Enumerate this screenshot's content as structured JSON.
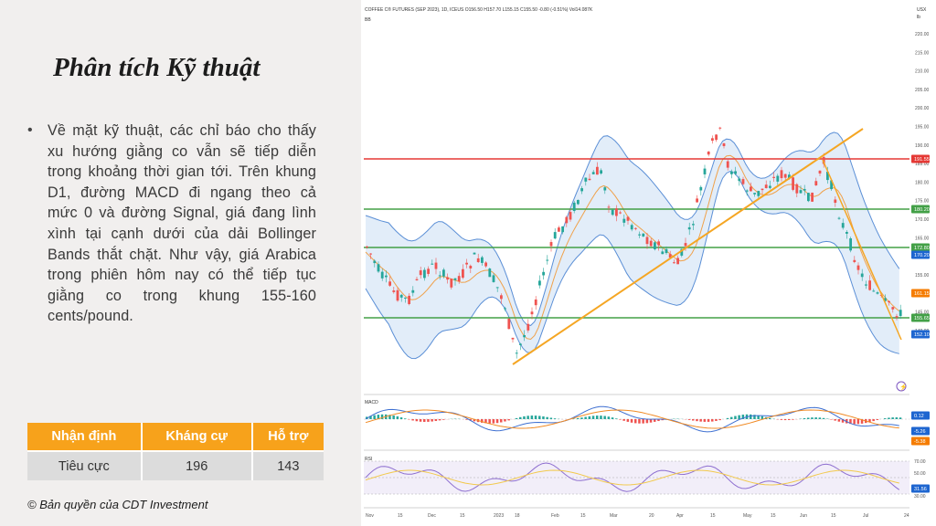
{
  "slide": {
    "title": "Phân tích Kỹ thuật",
    "bullet": "Về mặt kỹ thuật, các chỉ báo cho thấy xu hướng giằng co vẫn sẽ tiếp diễn trong khoảng thời gian tới. Trên khung D1, đường MACD đi ngang theo cả mức 0 và đường Signal, giá đang lình xình tại cạnh dưới của dải Bollinger Bands thắt chặt. Như vậy, giá Arabica trong phiên hôm nay có thể tiếp tục giằng co trong khung 155-160 cents/pound.",
    "copyright": "© Bản quyền của CDT Investment"
  },
  "summary_table": {
    "headers": [
      "Nhận định",
      "Kháng cự",
      "Hỗ trợ"
    ],
    "row": [
      "Tiêu cực",
      "196",
      "143"
    ]
  },
  "chart": {
    "header": "COFFEE C® FUTURES (SEP 2023), 1D, ICEUS  O156.50  H157.70  L155.15  C155.50  -0.80 (-0.51%)  Vol14.087K",
    "indicator_bb": "BB",
    "indicator_macd": "MACD",
    "indicator_rsi": "RSI",
    "currency": "USX",
    "unit": "lb",
    "x_labels": [
      "Nov",
      "15",
      "Dec",
      "15",
      "2023",
      "18",
      "Feb",
      "15",
      "Mar",
      "20",
      "Apr",
      "15",
      "May",
      "15",
      "Jun",
      "15",
      "Jul",
      "24"
    ],
    "y_labels": [
      "220.00",
      "215.00",
      "210.00",
      "205.00",
      "200.00",
      "195.00",
      "190.00",
      "185.00",
      "180.00",
      "175.00",
      "170.00",
      "165.00",
      "160.00",
      "155.00",
      "150.00",
      "145.00",
      "140.00"
    ],
    "levels": [
      {
        "label": "191.55",
        "color": "#e53935"
      },
      {
        "label": "180.20",
        "color": "#43a047"
      },
      {
        "label": "172.80",
        "color": "#43a047"
      },
      {
        "label": "170.20",
        "color": "#1e66d0"
      },
      {
        "label": "161.15",
        "color": "#f57c00"
      },
      {
        "label": "155.65",
        "color": "#43a047"
      },
      {
        "label": "152.10",
        "color": "#1e66d0"
      }
    ],
    "macd_labels": [
      {
        "label": "0.12",
        "color": "#1e66d0"
      },
      {
        "label": "-5.26",
        "color": "#1e66d0"
      },
      {
        "label": "-5.38",
        "color": "#f57c00"
      }
    ],
    "rsi_labels": [
      {
        "label": "70.00",
        "color": "#ffffff"
      },
      {
        "label": "50.00",
        "color": "#ffffff"
      },
      {
        "label": "31.56",
        "color": "#1e66d0"
      },
      {
        "label": "30.00",
        "color": "#ffffff"
      }
    ],
    "rsi_values": [
      {
        "label": "50.00"
      },
      {
        "label": "31.56"
      },
      {
        "label": "30.00"
      }
    ]
  }
}
